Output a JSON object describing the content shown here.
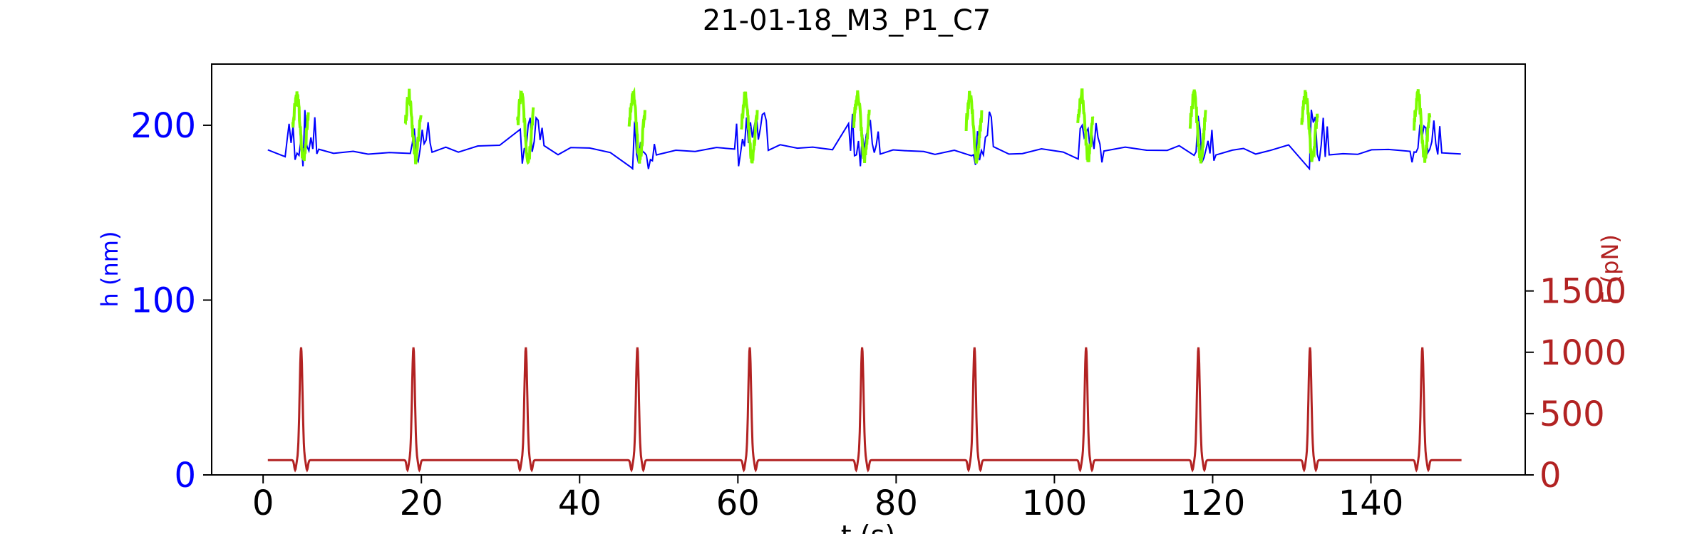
{
  "chart_data": {
    "type": "line",
    "title": "21-01-18_M3_P1_C7",
    "xlabel": "t (s)",
    "ylabel_left": "h (nm)",
    "ylabel_right": "F (pN)",
    "xlim": [
      -6.5,
      159.5
    ],
    "ylim_left": [
      0,
      235
    ],
    "ylim_right": [
      0,
      3350
    ],
    "xticks": [
      0,
      20,
      40,
      60,
      80,
      100,
      120,
      140
    ],
    "yticks_left": [
      0,
      100,
      200
    ],
    "yticks_right": [
      0,
      500,
      1000,
      1500
    ],
    "colors": {
      "h_series": "#0000ff",
      "h_highlight": "#7cfc00",
      "force_series": "#b22222",
      "left_axis_text": "#0000ff",
      "right_axis_text": "#b22222"
    },
    "grid": false,
    "pulses": {
      "t_start": 0.6,
      "t_end": 151.5,
      "pulse_times": [
        4.8,
        19.0,
        33.2,
        47.3,
        61.5,
        75.7,
        89.9,
        104.0,
        118.2,
        132.3,
        146.5
      ],
      "baseline_force_pN": 120,
      "peak_force_pN": 1040,
      "dip_force_pN": 40,
      "baseline_h_nm": 186,
      "highlight_peak_h_nm": 222,
      "highlight_min_h_nm": 178
    }
  }
}
